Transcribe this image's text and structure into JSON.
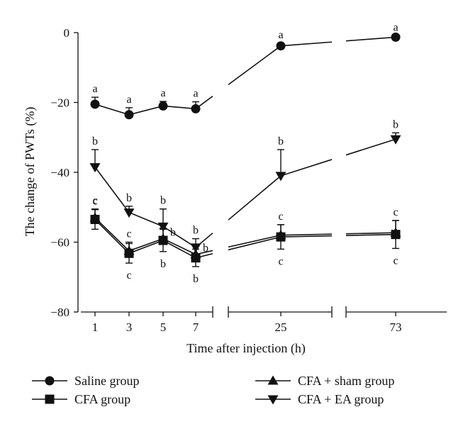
{
  "chart_data": {
    "type": "line",
    "title": "",
    "xlabel": "Time after injection (h)",
    "ylabel": "The change of PWTs (%)",
    "categories": [
      "1",
      "3",
      "5",
      "7",
      "25",
      "73"
    ],
    "ylim": [
      -80,
      0
    ],
    "yticks": [
      "0",
      "−20",
      "−40",
      "−60",
      "−80"
    ],
    "axis_breaks": [
      "between 7 and 25",
      "between 25 and 73"
    ],
    "legend_placement": "bottom",
    "series": [
      {
        "name": "Saline group",
        "marker": "circle",
        "values": [
          -20.5,
          -23.5,
          -21,
          -21.8,
          -3.8,
          -1.3
        ],
        "errors": [
          2,
          2,
          1.3,
          2,
          0.8,
          0.4
        ],
        "error_direction": "up",
        "sig_labels": [
          {
            "text": "a",
            "pos": "above"
          },
          {
            "text": "a",
            "pos": "above"
          },
          {
            "text": "a",
            "pos": "above"
          },
          {
            "text": "a",
            "pos": "above"
          },
          {
            "text": "a",
            "pos": "above"
          },
          {
            "text": "a",
            "pos": "above"
          }
        ]
      },
      {
        "name": "CFA group",
        "marker": "square",
        "values": [
          -53.5,
          -63.2,
          -59.5,
          -64.5,
          -58.5,
          -57.8
        ],
        "errors": [
          2.8,
          2.8,
          3.2,
          2.5,
          3.5,
          4
        ],
        "error_direction": "both",
        "sig_labels": [
          {
            "text": "c",
            "pos": "above"
          },
          {
            "text": "c",
            "pos": "below"
          },
          {
            "text": "b",
            "pos": "below"
          },
          {
            "text": "b",
            "pos": "below"
          },
          {
            "text": "c",
            "pos": "below"
          },
          {
            "text": "c",
            "pos": "below"
          }
        ]
      },
      {
        "name": "CFA + sham group",
        "marker": "triangle-up",
        "values": [
          -53,
          -62.5,
          -59,
          -63.5,
          -58,
          -57.3
        ],
        "errors": [
          2.5,
          2.5,
          3,
          2.5,
          3,
          3.5
        ],
        "error_direction": "up",
        "sig_labels": [
          {
            "text": "c",
            "pos": "above"
          },
          {
            "text": "c",
            "pos": "above"
          },
          {
            "text": "b",
            "pos": "right"
          },
          {
            "text": "b",
            "pos": "right"
          },
          {
            "text": "c",
            "pos": "above"
          },
          {
            "text": "c",
            "pos": "above"
          }
        ]
      },
      {
        "name": "CFA + EA group",
        "marker": "triangle-down",
        "values": [
          -38.5,
          -51.5,
          -55.5,
          -61.5,
          -41,
          -30.5
        ],
        "errors": [
          5,
          1.8,
          5,
          2.5,
          7.5,
          1.8
        ],
        "error_direction": "up",
        "sig_labels": [
          {
            "text": "b",
            "pos": "above"
          },
          {
            "text": "b",
            "pos": "above"
          },
          {
            "text": "b",
            "pos": "above"
          },
          {
            "text": "b",
            "pos": "above"
          },
          {
            "text": "b",
            "pos": "above"
          },
          {
            "text": "b",
            "pos": "above"
          }
        ]
      }
    ]
  }
}
